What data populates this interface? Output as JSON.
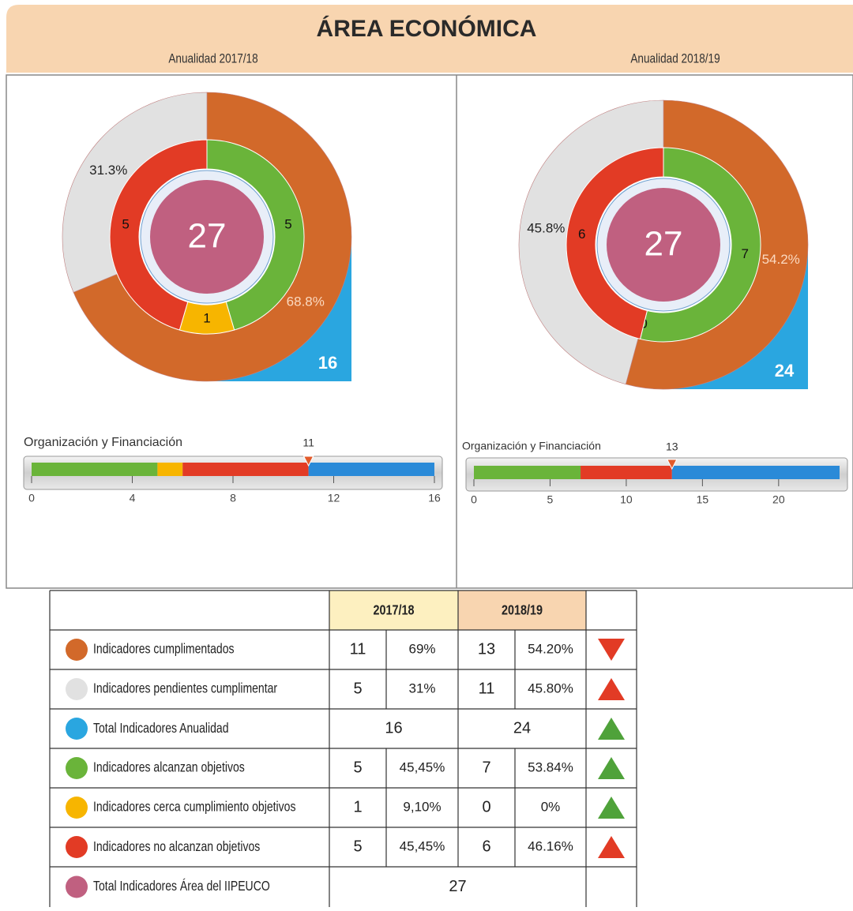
{
  "title": "ÁREA ECONÓMICA",
  "panels": [
    {
      "subtitle": "Anualidad 2017/18",
      "outer": {
        "values": [
          68.8,
          31.3
        ],
        "value_labels": [
          "68.8%",
          "31.3%"
        ],
        "colors": [
          "#d2692a",
          "#e1e1e1"
        ],
        "label_colors": [
          "#fbd9c0",
          "#222222"
        ]
      },
      "inner": {
        "values": [
          5,
          1,
          5
        ],
        "colors": [
          "#6ab43a",
          "#f7b500",
          "#e23b25"
        ]
      },
      "total": 27,
      "year_total": 16,
      "gauge": {
        "label": "Organización y Financiación",
        "marker": 11,
        "segments": [
          5,
          1,
          5,
          5
        ],
        "colors": [
          "#6ab43a",
          "#f7b500",
          "#e23b25",
          "#2a8ad8"
        ],
        "xlim": [
          0,
          16
        ],
        "xticks": [
          0,
          4,
          8,
          12,
          16
        ]
      }
    },
    {
      "subtitle": "Anualidad 2018/19",
      "outer": {
        "values": [
          54.2,
          45.8
        ],
        "value_labels": [
          "54.2%",
          "45.8%"
        ],
        "colors": [
          "#d2692a",
          "#e1e1e1"
        ],
        "label_colors": [
          "#fbd9c0",
          "#222222"
        ]
      },
      "inner": {
        "values": [
          7,
          0,
          6
        ],
        "colors": [
          "#6ab43a",
          "#f7b500",
          "#e23b25"
        ]
      },
      "total": 27,
      "year_total": 24,
      "gauge": {
        "label": "Organización y Financiación",
        "marker": 13,
        "segments": [
          7,
          0,
          6,
          11
        ],
        "colors": [
          "#6ab43a",
          "#f7b500",
          "#e23b25",
          "#2a8ad8"
        ],
        "xlim": [
          0,
          24
        ],
        "xticks": [
          0,
          5,
          10,
          15,
          20
        ]
      }
    }
  ],
  "table": {
    "header": [
      "2017/18",
      "2018/19"
    ],
    "rows": [
      {
        "label": "Indicadores cumplimentados",
        "color": "#d2692a",
        "cells": [
          11,
          "69%",
          13,
          "54.20%"
        ],
        "trend": "down",
        "trend_color": "#e23b25"
      },
      {
        "label": "Indicadores pendientes cumplimentar",
        "color": "#e1e1e1",
        "cells": [
          5,
          "31%",
          11,
          "45.80%"
        ],
        "trend": "up",
        "trend_color": "#e23b25"
      },
      {
        "label": "Total Indicadores Anualidad",
        "color": "#2aa6e0",
        "cells": [
          16,
          24
        ],
        "trend": "up",
        "trend_color": "#4fa23a"
      },
      {
        "label": "Indicadores alcanzan objetivos",
        "color": "#6ab43a",
        "cells": [
          5,
          "45,45%",
          7,
          "53.84%"
        ],
        "trend": "up",
        "trend_color": "#4fa23a"
      },
      {
        "label": "Indicadores cerca cumplimiento objetivos",
        "color": "#f7b500",
        "cells": [
          1,
          "9,10%",
          0,
          "0%"
        ],
        "trend": "up",
        "trend_color": "#4fa23a"
      },
      {
        "label": "Indicadores no alcanzan objetivos",
        "color": "#e23b25",
        "cells": [
          5,
          "45,45%",
          6,
          "46.16%"
        ],
        "trend": "up",
        "trend_color": "#e23b25"
      },
      {
        "label": "Total Indicadores Área del IIPEUCO",
        "color": "#c06080",
        "cells": [
          27
        ]
      }
    ]
  }
}
